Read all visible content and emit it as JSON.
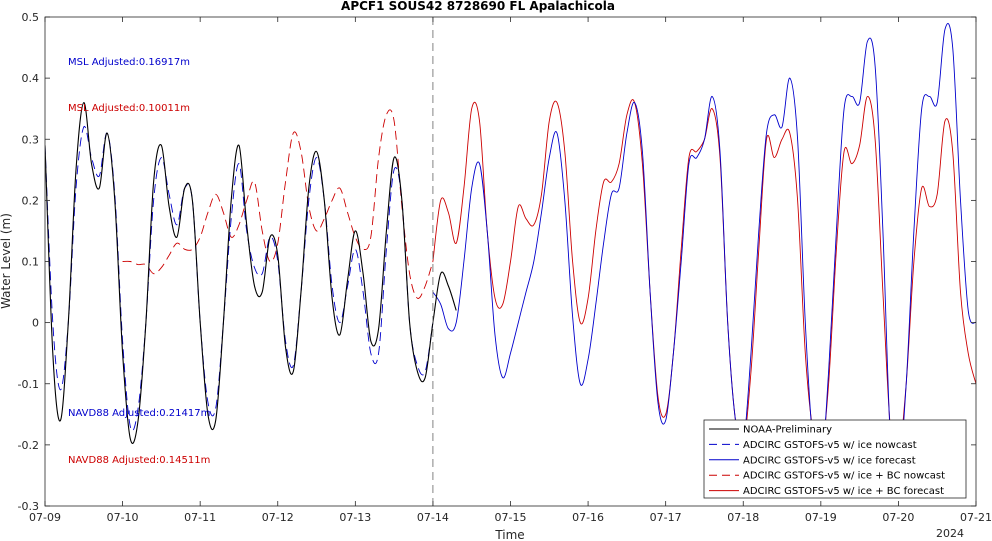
{
  "chart_data": {
    "type": "line",
    "title": "APCF1 SOUS42 8728690 FL Apalachicola",
    "xlabel": "Time",
    "ylabel": "Water Level (m)",
    "x_tick_labels": [
      "07-09",
      "07-10",
      "07-11",
      "07-12",
      "07-13",
      "07-14",
      "07-15",
      "07-16",
      "07-17",
      "07-18",
      "07-19",
      "07-20",
      "07-21"
    ],
    "x_secondary_label": "2024",
    "xlim_days": [
      9,
      21
    ],
    "ylim": [
      -0.3,
      0.5
    ],
    "y_ticks": [
      -0.3,
      -0.2,
      -0.1,
      0,
      0.1,
      0.2,
      0.3,
      0.4,
      0.5
    ],
    "y_tick_labels": [
      "-0.3",
      "-0.2",
      "-0.1",
      "0",
      "0.1",
      "0.2",
      "0.3",
      "0.4",
      "0.5"
    ],
    "nowcast_boundary_day": 14,
    "grid": false,
    "legend_position": "bottom-right",
    "annotations": [
      {
        "text": "MSL Adjusted:0.16917m",
        "color": "#0000cc"
      },
      {
        "text": "MSL Adjusted:0.10011m",
        "color": "#cc0000"
      },
      {
        "text": "NAVD88 Adjusted:0.21417m",
        "color": "#0000cc"
      },
      {
        "text": "NAVD88 Adjusted:0.14511m",
        "color": "#cc0000"
      }
    ],
    "series": [
      {
        "name": "NOAA-Preliminary",
        "color": "#000000",
        "dash": "solid",
        "x": [
          9.0,
          9.1,
          9.2,
          9.3,
          9.4,
          9.5,
          9.6,
          9.7,
          9.8,
          9.9,
          10.0,
          10.1,
          10.2,
          10.3,
          10.4,
          10.5,
          10.6,
          10.7,
          10.8,
          10.9,
          11.0,
          11.1,
          11.2,
          11.3,
          11.4,
          11.5,
          11.6,
          11.7,
          11.8,
          11.9,
          12.0,
          12.1,
          12.2,
          12.3,
          12.4,
          12.5,
          12.6,
          12.7,
          12.8,
          12.9,
          13.0,
          13.1,
          13.2,
          13.3,
          13.4,
          13.5,
          13.6,
          13.7,
          13.8,
          13.9,
          14.0,
          14.1,
          14.2,
          14.3
        ],
        "y": [
          0.29,
          -0.05,
          -0.16,
          0.0,
          0.25,
          0.36,
          0.26,
          0.22,
          0.31,
          0.2,
          -0.05,
          -0.19,
          -0.16,
          0.0,
          0.23,
          0.29,
          0.19,
          0.14,
          0.22,
          0.2,
          0.0,
          -0.15,
          -0.16,
          0.0,
          0.2,
          0.29,
          0.16,
          0.06,
          0.05,
          0.14,
          0.11,
          -0.04,
          -0.08,
          0.05,
          0.22,
          0.28,
          0.2,
          0.04,
          -0.02,
          0.07,
          0.15,
          0.08,
          -0.03,
          -0.01,
          0.15,
          0.27,
          0.2,
          0.0,
          -0.08,
          -0.09,
          0.0,
          0.08,
          0.06,
          0.02
        ]
      },
      {
        "name": "ADCIRC GSTOFS-v5 w/ ice nowcast",
        "color": "#0000cc",
        "dash": "dashed",
        "x": [
          9.0,
          9.1,
          9.2,
          9.3,
          9.4,
          9.5,
          9.6,
          9.7,
          9.8,
          9.9,
          10.0,
          10.1,
          10.2,
          10.3,
          10.4,
          10.5,
          10.6,
          10.7,
          10.8,
          10.9,
          11.0,
          11.1,
          11.2,
          11.3,
          11.4,
          11.5,
          11.6,
          11.7,
          11.8,
          11.9,
          12.0,
          12.1,
          12.2,
          12.3,
          12.4,
          12.5,
          12.6,
          12.7,
          12.8,
          12.9,
          13.0,
          13.1,
          13.2,
          13.3,
          13.4,
          13.5,
          13.6,
          13.7,
          13.8,
          13.9,
          14.0
        ],
        "y": [
          0.29,
          0.0,
          -0.11,
          0.0,
          0.22,
          0.32,
          0.27,
          0.24,
          0.31,
          0.21,
          -0.03,
          -0.17,
          -0.14,
          0.0,
          0.2,
          0.27,
          0.21,
          0.16,
          0.22,
          0.2,
          0.0,
          -0.13,
          -0.14,
          0.0,
          0.17,
          0.26,
          0.15,
          0.09,
          0.08,
          0.14,
          0.1,
          -0.03,
          -0.07,
          0.05,
          0.2,
          0.27,
          0.2,
          0.06,
          0.0,
          0.06,
          0.12,
          0.05,
          -0.05,
          -0.05,
          0.12,
          0.25,
          0.2,
          0.0,
          -0.07,
          -0.08,
          0.0
        ]
      },
      {
        "name": "ADCIRC GSTOFS-v5 w/ ice forecast",
        "color": "#0000cc",
        "dash": "solid",
        "x": [
          14.0,
          14.1,
          14.2,
          14.3,
          14.4,
          14.5,
          14.6,
          14.7,
          14.8,
          14.9,
          15.0,
          15.1,
          15.2,
          15.3,
          15.4,
          15.5,
          15.6,
          15.7,
          15.8,
          15.9,
          16.0,
          16.1,
          16.2,
          16.3,
          16.4,
          16.5,
          16.6,
          16.7,
          16.8,
          16.9,
          17.0,
          17.1,
          17.2,
          17.3,
          17.4,
          17.5,
          17.6,
          17.7,
          17.8,
          17.9,
          18.0,
          18.1,
          18.2,
          18.3,
          18.4,
          18.5,
          18.6,
          18.7,
          18.8,
          18.9,
          19.0,
          19.1,
          19.2,
          19.3,
          19.4,
          19.5,
          19.6,
          19.7,
          19.8,
          19.9,
          20.0,
          20.1,
          20.2,
          20.3,
          20.4,
          20.5,
          20.6,
          20.7,
          20.8,
          20.9,
          21.0
        ],
        "y": [
          0.05,
          0.03,
          -0.01,
          0.0,
          0.1,
          0.22,
          0.26,
          0.15,
          -0.02,
          -0.09,
          -0.05,
          0.0,
          0.05,
          0.1,
          0.18,
          0.27,
          0.31,
          0.2,
          0.01,
          -0.1,
          -0.06,
          0.03,
          0.13,
          0.21,
          0.22,
          0.31,
          0.36,
          0.28,
          0.05,
          -0.13,
          -0.16,
          -0.05,
          0.1,
          0.26,
          0.27,
          0.3,
          0.37,
          0.28,
          0.0,
          -0.16,
          -0.2,
          -0.05,
          0.15,
          0.31,
          0.34,
          0.32,
          0.4,
          0.3,
          0.0,
          -0.2,
          -0.25,
          -0.08,
          0.15,
          0.35,
          0.37,
          0.36,
          0.46,
          0.42,
          0.15,
          -0.2,
          -0.25,
          -0.1,
          0.15,
          0.35,
          0.37,
          0.36,
          0.48,
          0.45,
          0.2,
          0.02,
          0.0
        ]
      },
      {
        "name": "ADCIRC GSTOFS-v5 w/ ice + BC nowcast",
        "color": "#cc0000",
        "dash": "dashed",
        "x": [
          10.0,
          10.1,
          10.2,
          10.3,
          10.4,
          10.5,
          10.6,
          10.7,
          10.8,
          10.9,
          11.0,
          11.1,
          11.2,
          11.3,
          11.4,
          11.5,
          11.6,
          11.7,
          11.8,
          11.9,
          12.0,
          12.1,
          12.2,
          12.3,
          12.4,
          12.5,
          12.6,
          12.7,
          12.8,
          12.9,
          13.0,
          13.1,
          13.2,
          13.3,
          13.4,
          13.5,
          13.6,
          13.7,
          13.8,
          13.9,
          14.0
        ],
        "y": [
          0.1,
          0.1,
          0.095,
          0.095,
          0.08,
          0.09,
          0.11,
          0.13,
          0.12,
          0.12,
          0.14,
          0.18,
          0.21,
          0.18,
          0.14,
          0.16,
          0.2,
          0.23,
          0.15,
          0.1,
          0.13,
          0.23,
          0.31,
          0.28,
          0.19,
          0.15,
          0.17,
          0.2,
          0.22,
          0.18,
          0.14,
          0.12,
          0.14,
          0.27,
          0.34,
          0.33,
          0.19,
          0.08,
          0.04,
          0.06,
          0.1
        ]
      },
      {
        "name": "ADCIRC GSTOFS-v5 w/ ice + BC forecast",
        "color": "#cc0000",
        "dash": "solid",
        "x": [
          14.0,
          14.1,
          14.2,
          14.3,
          14.4,
          14.5,
          14.6,
          14.7,
          14.8,
          14.9,
          15.0,
          15.1,
          15.2,
          15.3,
          15.4,
          15.5,
          15.6,
          15.7,
          15.8,
          15.9,
          16.0,
          16.1,
          16.2,
          16.3,
          16.4,
          16.5,
          16.6,
          16.7,
          16.8,
          16.9,
          17.0,
          17.1,
          17.2,
          17.3,
          17.4,
          17.5,
          17.6,
          17.7,
          17.8,
          17.9,
          18.0,
          18.1,
          18.2,
          18.3,
          18.4,
          18.5,
          18.6,
          18.7,
          18.8,
          18.9,
          19.0,
          19.1,
          19.2,
          19.3,
          19.4,
          19.5,
          19.6,
          19.7,
          19.8,
          19.9,
          20.0,
          20.1,
          20.2,
          20.3,
          20.4,
          20.5,
          20.6,
          20.7,
          20.8,
          20.9,
          21.0
        ],
        "y": [
          0.1,
          0.2,
          0.18,
          0.13,
          0.22,
          0.35,
          0.33,
          0.15,
          0.04,
          0.03,
          0.1,
          0.19,
          0.17,
          0.16,
          0.21,
          0.33,
          0.36,
          0.28,
          0.1,
          0.0,
          0.04,
          0.15,
          0.23,
          0.23,
          0.26,
          0.34,
          0.36,
          0.26,
          0.05,
          -0.12,
          -0.15,
          -0.05,
          0.12,
          0.27,
          0.28,
          0.3,
          0.35,
          0.27,
          0.0,
          -0.16,
          -0.2,
          -0.08,
          0.12,
          0.3,
          0.27,
          0.3,
          0.31,
          0.2,
          -0.05,
          -0.18,
          -0.22,
          -0.1,
          0.12,
          0.28,
          0.26,
          0.29,
          0.37,
          0.3,
          0.05,
          -0.18,
          -0.22,
          -0.1,
          0.1,
          0.22,
          0.19,
          0.21,
          0.33,
          0.28,
          0.05,
          -0.05,
          -0.1
        ]
      }
    ]
  }
}
